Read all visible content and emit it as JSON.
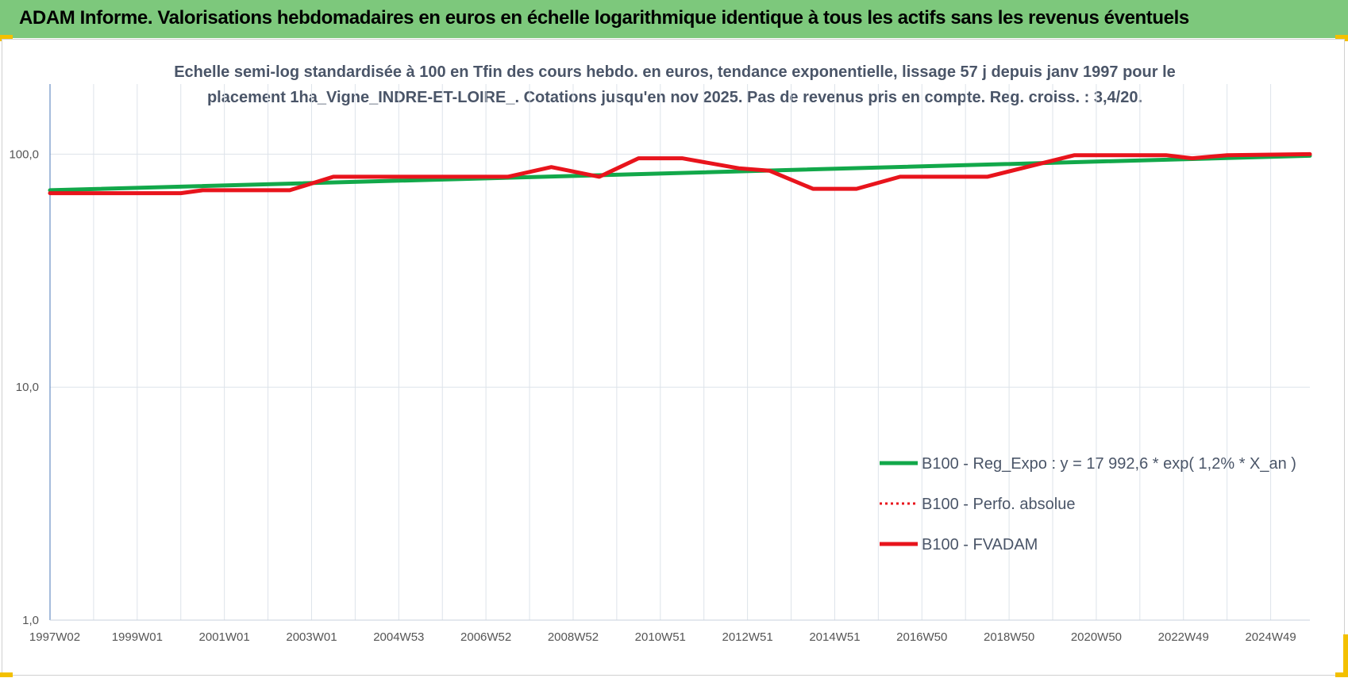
{
  "header": {
    "title": "ADAM Informe. Valorisations hebdomadaires en euros en échelle logarithmique identique à tous les actifs sans les revenus éventuels"
  },
  "colors": {
    "header_bg": "#7dc87c",
    "accent_corner": "#f3c000",
    "reg_series": "#12a84a",
    "fvadam_series": "#e8141c",
    "grid": "#dde3ea",
    "axis": "#6a8fc4"
  },
  "chart_data": {
    "type": "line",
    "title_lines": [
      "Echelle semi-log standardisée à 100 en Tfin des cours hebdo. en euros, tendance exponentielle, lissage 57 j depuis janv 1997 pour le",
      "placement 1ha_Vigne_INDRE-ET-LOIRE_. Cotations jusqu'en nov 2025. Pas de revenus pris en compte. Reg. croiss. : 3,4/20."
    ],
    "yscale": "log",
    "ylim": [
      1,
      200
    ],
    "y_ticks": [
      {
        "value": 1,
        "label": "1,0"
      },
      {
        "value": 10,
        "label": "10,0"
      },
      {
        "value": 100,
        "label": "100,0"
      }
    ],
    "xlim": [
      1997.0,
      2025.9
    ],
    "x_ticks": [
      {
        "x": 1997.0,
        "label": "1997W02"
      },
      {
        "x": 1999.0,
        "label": "1999W01"
      },
      {
        "x": 2001.0,
        "label": "2001W01"
      },
      {
        "x": 2003.0,
        "label": "2003W01"
      },
      {
        "x": 2005.0,
        "label": "2004W53"
      },
      {
        "x": 2007.0,
        "label": "2006W52"
      },
      {
        "x": 2009.0,
        "label": "2008W52"
      },
      {
        "x": 2011.0,
        "label": "2010W51"
      },
      {
        "x": 2013.0,
        "label": "2012W51"
      },
      {
        "x": 2015.0,
        "label": "2014W51"
      },
      {
        "x": 2017.0,
        "label": "2016W50"
      },
      {
        "x": 2019.0,
        "label": "2018W50"
      },
      {
        "x": 2021.0,
        "label": "2020W50"
      },
      {
        "x": 2023.0,
        "label": "2022W49"
      },
      {
        "x": 2025.0,
        "label": "2024W49"
      }
    ],
    "x_minor_grid_step": 1,
    "grid": true,
    "legend_position": "bottom-right",
    "series": [
      {
        "name": "B100 - Reg_Expo : y = 17 992,6 * exp( 1,2% *  X_an )",
        "style": "solid",
        "color": "#12a84a",
        "points": [
          [
            1997.0,
            70.0
          ],
          [
            2025.9,
            98.5
          ]
        ]
      },
      {
        "name": "B100 - Perfo. absolue",
        "style": "dotted",
        "color": "#e8141c",
        "points": []
      },
      {
        "name": "B100 - FVADAM",
        "style": "solid",
        "color": "#e8141c",
        "points": [
          [
            1997.0,
            68.0
          ],
          [
            2000.0,
            68.0
          ],
          [
            2000.5,
            70.0
          ],
          [
            2002.5,
            70.0
          ],
          [
            2003.5,
            80.0
          ],
          [
            2007.5,
            80.0
          ],
          [
            2008.5,
            88.0
          ],
          [
            2009.6,
            80.0
          ],
          [
            2010.5,
            96.0
          ],
          [
            2011.5,
            96.0
          ],
          [
            2012.8,
            87.0
          ],
          [
            2013.5,
            85.0
          ],
          [
            2014.5,
            71.0
          ],
          [
            2015.5,
            71.0
          ],
          [
            2016.5,
            80.0
          ],
          [
            2018.5,
            80.0
          ],
          [
            2020.5,
            99.0
          ],
          [
            2022.6,
            99.0
          ],
          [
            2023.2,
            96.0
          ],
          [
            2024.0,
            99.0
          ],
          [
            2025.9,
            100.0
          ]
        ]
      }
    ]
  }
}
